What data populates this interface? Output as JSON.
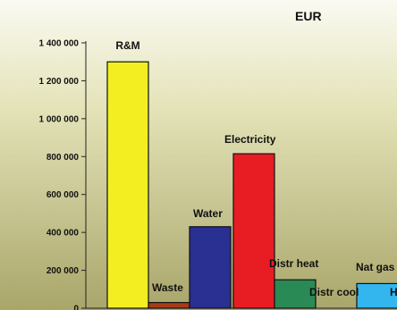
{
  "chart_data": {
    "type": "bar",
    "title": "EUR",
    "xlabel": "",
    "ylabel": "",
    "ylim": [
      0,
      1400000
    ],
    "yticks": [
      0,
      200000,
      400000,
      600000,
      800000,
      1000000,
      1200000,
      1400000
    ],
    "ytick_labels": [
      "0",
      "200 000",
      "400 000",
      "600 000",
      "800 000",
      "1 000 000",
      "1 200 000",
      "1 400 000"
    ],
    "grid": false,
    "legend": "none",
    "categories": [
      "R&M",
      "Waste",
      "Water",
      "Electricity",
      "Distr heat",
      "Distr cool",
      "Nat gas",
      "H"
    ],
    "values": [
      1300000,
      30000,
      430000,
      815000,
      150000,
      0,
      130000,
      0
    ],
    "colors": [
      "#f2ee22",
      "#a83a18",
      "#2a2f92",
      "#e81d24",
      "#2a8a55",
      "#5cc9ef",
      "#33b6ee",
      "#33b6ee"
    ],
    "label_texts": [
      "R&M",
      "Waste",
      "Water",
      "Electricity",
      "Distr heat",
      "Distr cool",
      "Nat gas",
      "H"
    ]
  }
}
